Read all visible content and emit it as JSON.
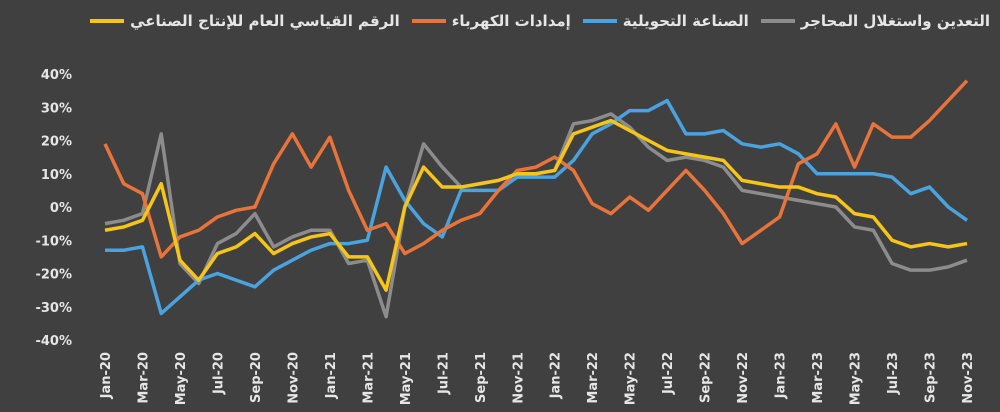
{
  "chart_data": {
    "type": "line",
    "categories": [
      "Jan-20",
      null,
      "Mar-20",
      null,
      "May-20",
      null,
      "Jul-20",
      null,
      "Sep-20",
      null,
      "Nov-20",
      null,
      "Jan-21",
      null,
      "Mar-21",
      null,
      "May-21",
      null,
      "Jul-21",
      null,
      "Sep-21",
      null,
      "Nov-21",
      null,
      "Jan-22",
      null,
      "Mar-22",
      null,
      "May-22",
      null,
      "Jul-22",
      null,
      "Sep-22",
      null,
      "Nov-22",
      null,
      "Jan-23",
      null,
      "Mar-23",
      null,
      "May-23",
      null,
      "Jul-23",
      null,
      "Sep-23",
      null,
      "Nov-23"
    ],
    "series": [
      {
        "name": "التعدين واستغلال المحاجر",
        "color": "#8c8c8c",
        "values": [
          -5,
          -4,
          -2,
          22,
          -17,
          -23,
          -11,
          -8,
          -2,
          -12,
          -9,
          -7,
          -7,
          -17,
          -16,
          -33,
          0,
          19,
          12,
          6,
          7,
          8,
          10,
          10,
          11,
          25,
          26,
          28,
          24,
          18,
          14,
          15,
          14,
          12,
          5,
          4,
          3,
          2,
          1,
          0,
          -6,
          -7,
          -17,
          -19,
          -19,
          -18,
          -16
        ]
      },
      {
        "name": "الصناعة التحويلية",
        "color": "#4aa3df",
        "values": [
          -13,
          -13,
          -12,
          -32,
          -27,
          -22,
          -20,
          -22,
          -24,
          -19,
          -16,
          -13,
          -11,
          -11,
          -10,
          12,
          2,
          -5,
          -9,
          5,
          5,
          5,
          9,
          9,
          9,
          14,
          22,
          25,
          29,
          29,
          32,
          22,
          22,
          23,
          19,
          18,
          19,
          16,
          10,
          10,
          10,
          10,
          9,
          4,
          6,
          0,
          -4
        ]
      },
      {
        "name": "إمدادات الكهرباء",
        "color": "#e8743b",
        "values": [
          19,
          7,
          4,
          -15,
          -9,
          -7,
          -3,
          -1,
          0,
          13,
          22,
          12,
          21,
          5,
          -7,
          -5,
          -14,
          -11,
          -7,
          -4,
          -2,
          5,
          11,
          12,
          15,
          11,
          1,
          -2,
          3,
          -1,
          5,
          11,
          5,
          -2,
          -11,
          -7,
          -3,
          13,
          16,
          25,
          12,
          25,
          21,
          21,
          26,
          32,
          38
        ]
      },
      {
        "name": "الرقم القياسي العام للإنتاج الصناعي",
        "color": "#f5c518",
        "values": [
          -7,
          -6,
          -4,
          7,
          -16,
          -22,
          -14,
          -12,
          -8,
          -14,
          -11,
          -9,
          -8,
          -15,
          -15,
          -25,
          0,
          12,
          6,
          6,
          7,
          8,
          10,
          10,
          11,
          22,
          24,
          26,
          23,
          20,
          17,
          16,
          15,
          14,
          8,
          7,
          6,
          6,
          4,
          3,
          -2,
          -3,
          -10,
          -12,
          -11,
          -12,
          -11
        ]
      }
    ],
    "ylim": [
      -40,
      40
    ],
    "yticks": [
      {
        "value": -40,
        "label": "-40%"
      },
      {
        "value": -30,
        "label": "-30%"
      },
      {
        "value": -20,
        "label": "-20%"
      },
      {
        "value": -10,
        "label": "-10%"
      },
      {
        "value": 0,
        "label": "0%"
      },
      {
        "value": 10,
        "label": "10%"
      },
      {
        "value": 20,
        "label": "20%"
      },
      {
        "value": 30,
        "label": "30%"
      },
      {
        "value": 40,
        "label": "40%"
      }
    ],
    "grid": false,
    "legend": "top"
  }
}
